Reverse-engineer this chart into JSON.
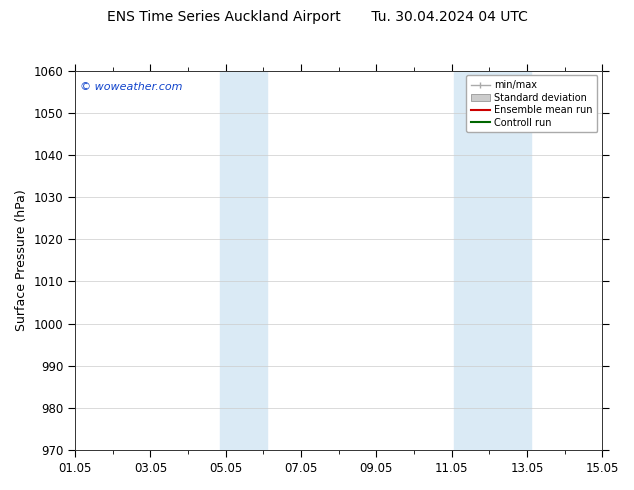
{
  "title": "ENS Time Series Auckland Airport       Tu. 30.04.2024 04 UTC",
  "ylabel": "Surface Pressure (hPa)",
  "ymin": 970,
  "ymax": 1060,
  "ytick_step": 10,
  "xmin": 0,
  "xmax": 14,
  "xtick_labels": [
    "01.05",
    "03.05",
    "05.05",
    "07.05",
    "09.05",
    "11.05",
    "13.05",
    "15.05"
  ],
  "xtick_positions": [
    0,
    2,
    4,
    6,
    8,
    10,
    12,
    14
  ],
  "shaded_bands": [
    {
      "xstart": 3.85,
      "xend": 5.1,
      "color": "#daeaf5"
    },
    {
      "xstart": 10.05,
      "xend": 12.1,
      "color": "#daeaf5"
    }
  ],
  "watermark": "© woweather.com",
  "legend_items": [
    {
      "label": "min/max",
      "color": "#aaaaaa",
      "style": "line_with_bar"
    },
    {
      "label": "Standard deviation",
      "color": "#cccccc",
      "style": "rect"
    },
    {
      "label": "Ensemble mean run",
      "color": "#cc0000",
      "style": "line"
    },
    {
      "label": "Controll run",
      "color": "#006600",
      "style": "line"
    }
  ],
  "background_color": "#ffffff",
  "plot_bg_color": "#ffffff",
  "grid_color": "#cccccc",
  "title_fontsize": 10,
  "axis_label_fontsize": 9,
  "tick_fontsize": 8.5
}
